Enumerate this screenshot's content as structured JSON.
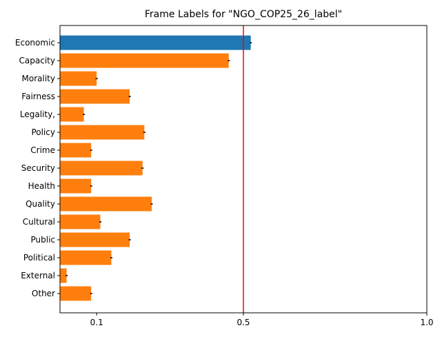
{
  "chart_data": {
    "type": "bar",
    "orientation": "horizontal",
    "title": "Frame Labels for \"NGO_COP25_26_label\"",
    "xlabel": "",
    "ylabel": "",
    "categories": [
      "Economic",
      "Capacity",
      "Morality",
      "Fairness",
      "Legality,",
      "Policy",
      "Crime",
      "Security",
      "Health",
      "Quality",
      "Cultural",
      "Public",
      "Political",
      "External",
      "Other"
    ],
    "values": [
      0.52,
      0.46,
      0.1,
      0.19,
      0.065,
      0.23,
      0.085,
      0.225,
      0.085,
      0.25,
      0.11,
      0.19,
      0.14,
      0.018,
      0.085
    ],
    "errors": [
      0.003,
      0.003,
      0.003,
      0.003,
      0.003,
      0.003,
      0.003,
      0.003,
      0.003,
      0.003,
      0.003,
      0.003,
      0.003,
      0.003,
      0.003
    ],
    "highlight_index": 0,
    "colors": {
      "highlight": "#1f77b4",
      "default": "#ff7f0e",
      "reference_line": "#ff0000",
      "error": "#000000"
    },
    "reference_line_x": 0.5,
    "xlim": [
      0.0,
      1.0
    ],
    "xticks": [
      0.1,
      0.5,
      1.0
    ],
    "xtick_labels": [
      "0.1",
      "0.5",
      "1.0"
    ],
    "grid": false,
    "legend": "none"
  }
}
